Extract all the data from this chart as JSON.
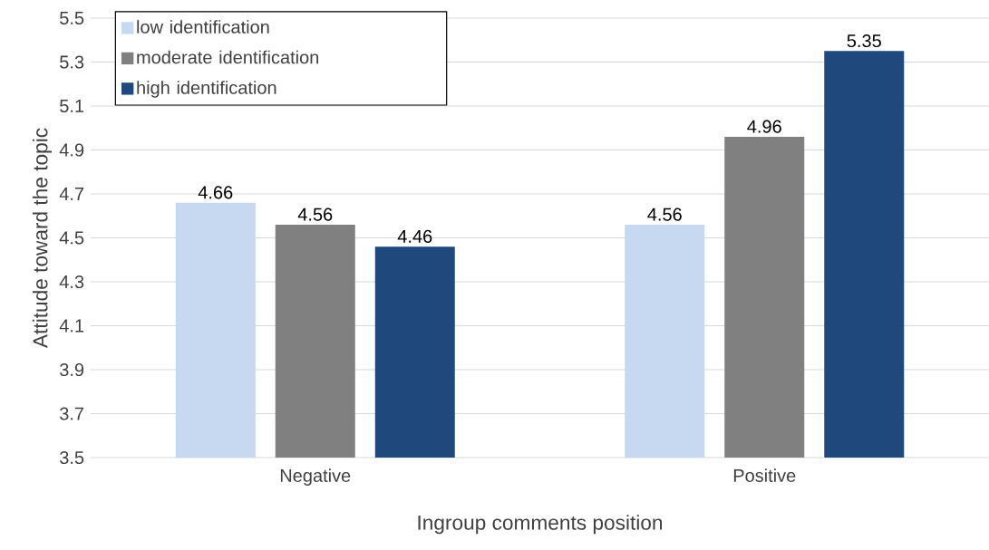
{
  "chart_data": {
    "type": "bar",
    "xlabel": "Ingroup comments position",
    "ylabel": "Attitude toward the topic",
    "categories": [
      "Negative",
      "Positive"
    ],
    "series": [
      {
        "name": "low identification",
        "color": "#c6d9f1",
        "values": [
          4.66,
          4.56
        ]
      },
      {
        "name": "moderate identification",
        "color": "#808080",
        "values": [
          4.56,
          4.96
        ]
      },
      {
        "name": "high identification",
        "color": "#1f497d",
        "values": [
          4.46,
          5.35
        ]
      }
    ],
    "ylim": [
      3.5,
      5.5
    ],
    "yticks": [
      3.5,
      3.7,
      3.9,
      4.1,
      4.3,
      4.5,
      4.7,
      4.9,
      5.1,
      5.3,
      5.5
    ],
    "grid": "y",
    "legend": "top left",
    "data_labels": true
  }
}
